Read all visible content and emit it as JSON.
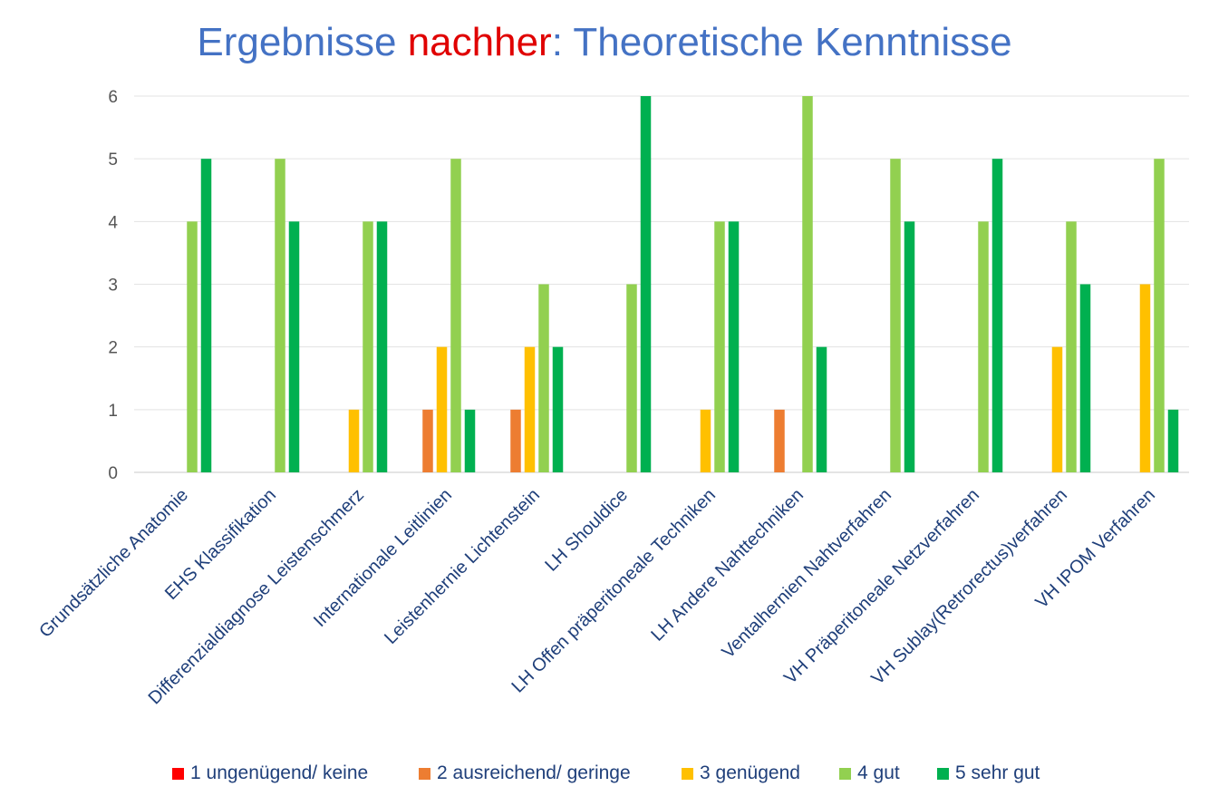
{
  "title": {
    "part1": "Ergebnisse ",
    "highlight": "nachher",
    "part2": ": Theoretische Kenntnisse"
  },
  "chart_data": {
    "type": "bar",
    "title": "Ergebnisse nachher: Theoretische Kenntnisse",
    "categories": [
      "Grundsätzliche Anatomie",
      "EHS Klassifikation",
      "Differenzialdiagnose Leistenschmerz",
      "Internationale Leitlinien",
      "Leistenhernie Lichtenstein",
      "LH Shouldice",
      "LH Offen präperitoneale Techniken",
      "LH Andere Nahttechniken",
      "Ventalhernien Nahtverfahren",
      "VH Präperitoneale Netzverfahren",
      "VH Sublay(Retrorectus)verfahren",
      "VH IPOM Verfahren"
    ],
    "series": [
      {
        "name": "1 ungenügend/ keine",
        "color": "#ff0000",
        "values": [
          0,
          0,
          0,
          0,
          0,
          0,
          0,
          0,
          0,
          0,
          0,
          0
        ]
      },
      {
        "name": "2 ausreichend/ geringe",
        "color": "#ed7d31",
        "values": [
          0,
          0,
          0,
          1,
          1,
          0,
          0,
          1,
          0,
          0,
          0,
          0
        ]
      },
      {
        "name": "3 genügend",
        "color": "#ffc000",
        "values": [
          0,
          0,
          1,
          2,
          2,
          0,
          1,
          0,
          0,
          0,
          2,
          3
        ]
      },
      {
        "name": "4 gut",
        "color": "#92d050",
        "values": [
          4,
          5,
          4,
          5,
          3,
          3,
          4,
          6,
          5,
          4,
          4,
          5
        ]
      },
      {
        "name": "5 sehr gut",
        "color": "#00b050",
        "values": [
          5,
          4,
          4,
          1,
          2,
          6,
          4,
          2,
          4,
          5,
          3,
          1
        ]
      }
    ],
    "ylim": [
      0,
      6
    ],
    "yticks": [
      "0",
      "1",
      "2",
      "3",
      "4",
      "5",
      "6"
    ],
    "grid": true,
    "legend": "bottom"
  }
}
